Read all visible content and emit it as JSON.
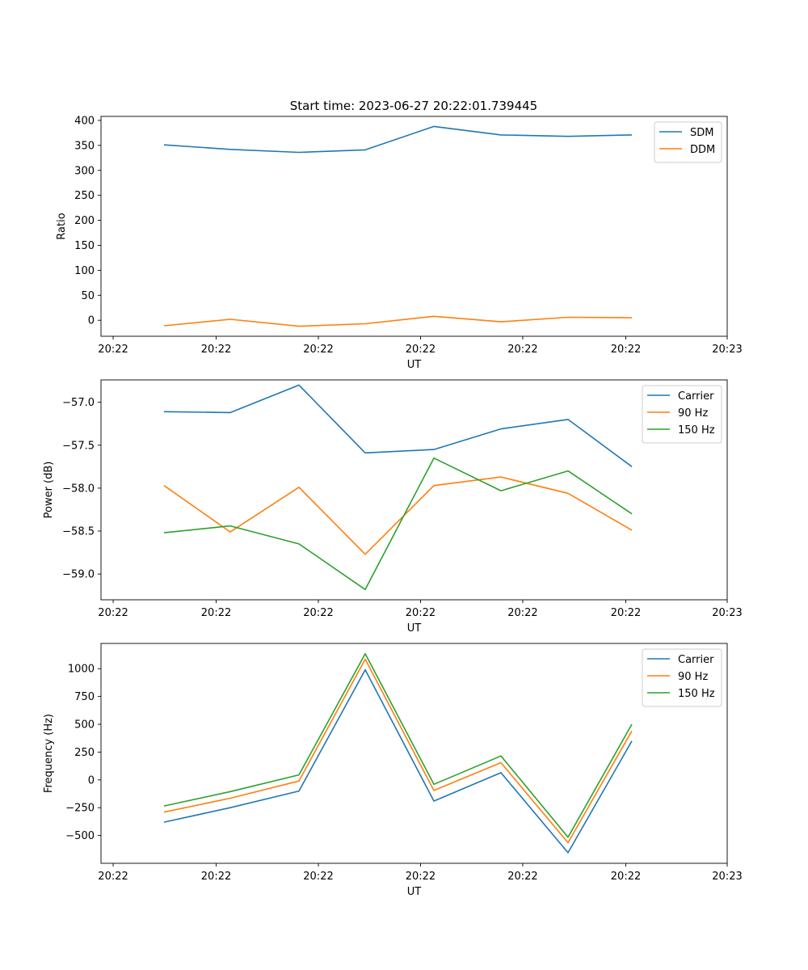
{
  "figure": {
    "title": "Start time: 2023-06-27 20:22:01.739445"
  },
  "chart_data": [
    {
      "type": "line",
      "xlabel": "UT",
      "ylabel": "Ratio",
      "x_ticks": [
        "20:22",
        "20:22",
        "20:22",
        "20:22",
        "20:22",
        "20:22",
        "20:23"
      ],
      "ylim": [
        -32,
        408
      ],
      "y_ticks": [
        0,
        50,
        100,
        150,
        200,
        250,
        300,
        350,
        400
      ],
      "legend": "top-right",
      "series": [
        {
          "name": "SDM",
          "color": "#1f77b4",
          "values": [
            351,
            342,
            336,
            341,
            388,
            371,
            368,
            371
          ]
        },
        {
          "name": "DDM",
          "color": "#ff7f0e",
          "values": [
            -11,
            2,
            -12,
            -7,
            8,
            -3,
            6,
            5
          ]
        }
      ]
    },
    {
      "type": "line",
      "xlabel": "UT",
      "ylabel": "Power (dB)",
      "x_ticks": [
        "20:22",
        "20:22",
        "20:22",
        "20:22",
        "20:22",
        "20:22",
        "20:23"
      ],
      "ylim": [
        -59.3,
        -56.74
      ],
      "y_ticks": [
        -57.0,
        -57.5,
        -58.0,
        -58.5,
        -59.0
      ],
      "legend": "top-right",
      "series": [
        {
          "name": "Carrier",
          "color": "#1f77b4",
          "values": [
            -57.11,
            -57.12,
            -56.8,
            -57.59,
            -57.55,
            -57.31,
            -57.2,
            -57.75
          ]
        },
        {
          "name": "90 Hz",
          "color": "#ff7f0e",
          "values": [
            -57.97,
            -58.51,
            -57.99,
            -58.77,
            -57.97,
            -57.87,
            -58.06,
            -58.49
          ]
        },
        {
          "name": "150 Hz",
          "color": "#2ca02c",
          "values": [
            -58.52,
            -58.44,
            -58.65,
            -59.18,
            -57.65,
            -58.03,
            -57.8,
            -58.3
          ]
        }
      ]
    },
    {
      "type": "line",
      "xlabel": "UT",
      "ylabel": "Frequency (Hz)",
      "x_ticks": [
        "20:22",
        "20:22",
        "20:22",
        "20:22",
        "20:22",
        "20:22",
        "20:23"
      ],
      "ylim": [
        -750,
        1227
      ],
      "y_ticks": [
        -500,
        -250,
        0,
        250,
        500,
        750,
        1000
      ],
      "legend": "top-right",
      "series": [
        {
          "name": "Carrier",
          "color": "#1f77b4",
          "values": [
            -380,
            -250,
            -100,
            990,
            -190,
            65,
            -655,
            350
          ]
        },
        {
          "name": "90 Hz",
          "color": "#ff7f0e",
          "values": [
            -290,
            -165,
            -10,
            1085,
            -95,
            155,
            -565,
            440
          ]
        },
        {
          "name": "150 Hz",
          "color": "#2ca02c",
          "values": [
            -235,
            -105,
            45,
            1135,
            -40,
            215,
            -515,
            500
          ]
        }
      ]
    }
  ]
}
